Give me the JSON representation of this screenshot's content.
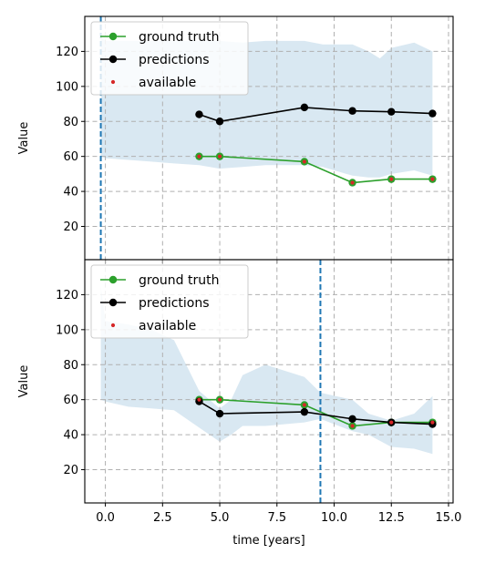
{
  "chart_data": [
    {
      "type": "line",
      "xlabel": "",
      "ylabel": "Value",
      "xlim": [
        -0.9,
        15.2
      ],
      "ylim": [
        1,
        140
      ],
      "xticks": [
        0.0,
        2.5,
        5.0,
        7.5,
        10.0,
        12.5,
        15.0
      ],
      "xtick_labels": [
        "0.0",
        "2.5",
        "5.0",
        "7.5",
        "10.0",
        "12.5",
        "15.0"
      ],
      "yticks": [
        20,
        40,
        60,
        80,
        100,
        120
      ],
      "ytick_labels": [
        "20",
        "40",
        "60",
        "80",
        "100",
        "120"
      ],
      "show_xtick_labels": false,
      "grid": true,
      "legend": "top-left",
      "vline_x": -0.2,
      "band": {
        "x": [
          -0.2,
          0.0,
          1.0,
          2.0,
          3.0,
          4.1,
          5.0,
          6.0,
          7.0,
          8.7,
          9.5,
          10.8,
          11.5,
          12.0,
          12.5,
          13.5,
          14.3
        ],
        "upper": [
          128,
          126,
          126,
          126,
          126,
          126,
          126,
          125,
          126,
          126,
          124,
          124,
          120,
          116,
          122,
          125,
          120
        ],
        "lower": [
          60,
          59,
          58,
          57,
          56,
          55,
          53,
          54,
          55,
          55,
          54,
          49,
          48,
          48,
          50,
          52,
          49
        ]
      },
      "series": [
        {
          "name": "ground truth",
          "color": "#2ca02c",
          "x": [
            4.1,
            5.0,
            8.7,
            10.8,
            12.5,
            14.3
          ],
          "y": [
            60,
            60,
            57,
            45,
            47,
            47
          ]
        },
        {
          "name": "predictions",
          "color": "#000000",
          "x": [
            4.1,
            5.0,
            8.7,
            10.8,
            12.5,
            14.3
          ],
          "y": [
            84,
            80,
            88,
            86,
            85.5,
            84.5
          ]
        },
        {
          "name": "available",
          "color": "#d62728",
          "x": [
            4.1,
            5.0,
            8.7,
            10.8,
            12.5,
            14.3
          ],
          "y": [
            60,
            60,
            57,
            45,
            47,
            47
          ]
        }
      ]
    },
    {
      "type": "line",
      "xlabel": "time [years]",
      "ylabel": "Value",
      "xlim": [
        -0.9,
        15.2
      ],
      "ylim": [
        1,
        140
      ],
      "xticks": [
        0.0,
        2.5,
        5.0,
        7.5,
        10.0,
        12.5,
        15.0
      ],
      "xtick_labels": [
        "0.0",
        "2.5",
        "5.0",
        "7.5",
        "10.0",
        "12.5",
        "15.0"
      ],
      "yticks": [
        20,
        40,
        60,
        80,
        100,
        120
      ],
      "ytick_labels": [
        "20",
        "40",
        "60",
        "80",
        "100",
        "120"
      ],
      "show_xtick_labels": true,
      "grid": true,
      "legend": "top-left",
      "vline_x": 9.4,
      "band": {
        "x": [
          -0.2,
          0.0,
          1.0,
          2.0,
          3.0,
          4.1,
          5.0,
          5.5,
          6.0,
          7.0,
          8.7,
          9.4,
          10.8,
          11.5,
          12.5,
          13.5,
          14.3
        ],
        "upper": [
          125,
          105,
          103,
          100,
          94,
          65,
          55,
          60,
          74,
          80,
          73,
          64,
          60,
          52,
          48,
          52,
          62
        ],
        "lower": [
          60,
          59,
          56,
          55,
          54,
          44,
          36,
          40,
          45,
          45,
          47,
          49,
          42,
          40,
          33,
          32,
          29
        ]
      },
      "series": [
        {
          "name": "ground truth",
          "color": "#2ca02c",
          "x": [
            4.1,
            5.0,
            8.7,
            10.8,
            12.5,
            14.3
          ],
          "y": [
            60,
            60,
            57,
            45,
            47,
            47
          ]
        },
        {
          "name": "predictions",
          "color": "#000000",
          "x": [
            4.1,
            5.0,
            8.7,
            10.8,
            12.5,
            14.3
          ],
          "y": [
            59,
            52,
            53,
            49,
            47,
            46
          ]
        },
        {
          "name": "available",
          "color": "#d62728",
          "x": [
            4.1,
            5.0,
            8.7,
            10.8,
            12.5,
            14.3
          ],
          "y": [
            60,
            60,
            57,
            45,
            47,
            47
          ]
        }
      ]
    }
  ]
}
